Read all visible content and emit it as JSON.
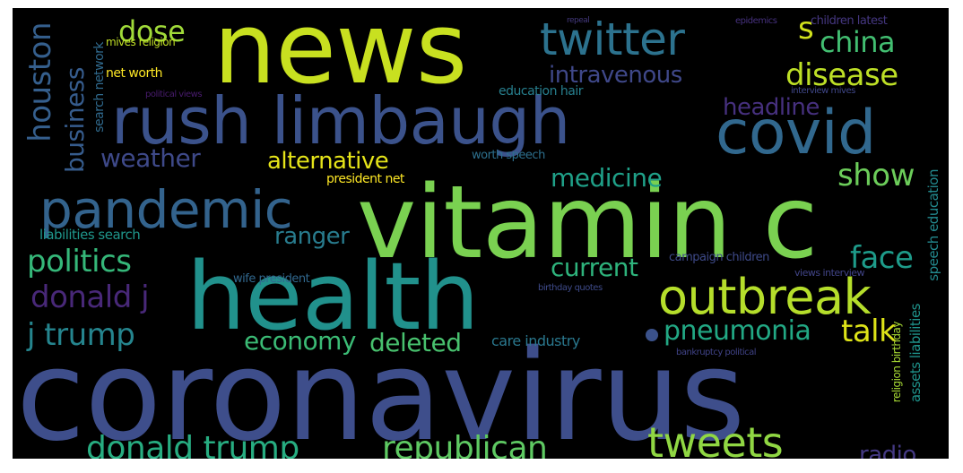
{
  "words": [
    {
      "text": "coronavirus",
      "color": "#3e4e8b"
    },
    {
      "text": "vitamin c",
      "color": "#7ad151"
    },
    {
      "text": "health",
      "color": "#21918c"
    },
    {
      "text": "news",
      "color": "#c8e020"
    },
    {
      "text": "rush limbaugh",
      "color": "#3b528b"
    },
    {
      "text": "pandemic",
      "color": "#33638d"
    },
    {
      "text": "covid",
      "color": "#31688e"
    },
    {
      "text": "outbreak",
      "color": "#b5de2b"
    },
    {
      "text": "twitter",
      "color": "#2c728e"
    },
    {
      "text": "tweets",
      "color": "#90d743"
    },
    {
      "text": "donald trump",
      "color": "#27ad81"
    },
    {
      "text": "republican",
      "color": "#5ec962"
    },
    {
      "text": "disease",
      "color": "#bddf26"
    },
    {
      "text": "china",
      "color": "#42be71"
    },
    {
      "text": "houston",
      "color": "#355f8d"
    },
    {
      "text": "business",
      "color": "#365c8d"
    },
    {
      "text": "politics",
      "color": "#35b779"
    },
    {
      "text": "j trump",
      "color": "#25858e"
    },
    {
      "text": "donald j",
      "color": "#482878"
    },
    {
      "text": "dose",
      "color": "#a0da39"
    },
    {
      "text": "s",
      "color": "#d0e11c"
    },
    {
      "text": "intravenous",
      "color": "#3f4889"
    },
    {
      "text": "headline",
      "color": "#46307e"
    },
    {
      "text": "alternative",
      "color": "#e5e419"
    },
    {
      "text": "weather",
      "color": "#3e4989"
    },
    {
      "text": "show",
      "color": "#6ccd5a"
    },
    {
      "text": "medicine",
      "color": "#1fa088"
    },
    {
      "text": "ranger",
      "color": "#287c8e"
    },
    {
      "text": "current",
      "color": "#2eb37c"
    },
    {
      "text": "face",
      "color": "#1e9b8a"
    },
    {
      "text": "pneumonia",
      "color": "#22a884"
    },
    {
      "text": "economy",
      "color": "#3bbb75"
    },
    {
      "text": "deleted",
      "color": "#48c16e"
    },
    {
      "text": "talk",
      "color": "#dde318"
    },
    {
      "text": "radio",
      "color": "#443983"
    },
    {
      "text": "care industry",
      "color": "#2a788e"
    },
    {
      "text": "president net",
      "color": "#fde725"
    },
    {
      "text": "net worth",
      "color": "#fde725"
    },
    {
      "text": "education hair",
      "color": "#277f8e"
    },
    {
      "text": "liabilities search",
      "color": "#1f968b"
    },
    {
      "text": "wife president",
      "color": "#31688e"
    },
    {
      "text": "worth speech",
      "color": "#2d708e"
    },
    {
      "text": "campaign children",
      "color": "#3e4a89"
    },
    {
      "text": "search network",
      "color": "#306a8e"
    },
    {
      "text": "speech education",
      "color": "#23898e"
    },
    {
      "text": "assets liabilities",
      "color": "#1f948c"
    },
    {
      "text": "religion birthday",
      "color": "#a8db34"
    },
    {
      "text": "children latest",
      "color": "#453781"
    },
    {
      "text": "mives religion",
      "color": "#c0df25"
    },
    {
      "text": "interview mives",
      "color": "#3f4788"
    },
    {
      "text": "views interview",
      "color": "#414487"
    },
    {
      "text": "birthday quotes",
      "color": "#3e4a89"
    },
    {
      "text": "bankruptcy political",
      "color": "#404387"
    },
    {
      "text": "political views",
      "color": "#481b6d"
    },
    {
      "text": "epidemics",
      "color": "#46317e"
    },
    {
      "text": "repeal",
      "color": "#44397e"
    }
  ]
}
